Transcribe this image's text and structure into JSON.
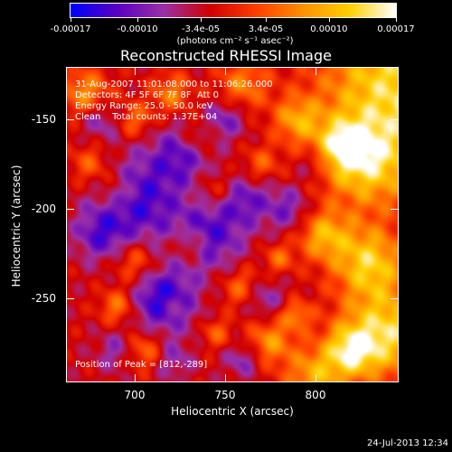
{
  "chart_data": {
    "type": "heatmap",
    "title": "Reconstructed RHESSI Image",
    "xlabel": "Heliocentric X (arcsec)",
    "ylabel": "Heliocentric Y (arcsec)",
    "xlim": [
      662,
      846
    ],
    "ylim": [
      -297,
      -121
    ],
    "x_ticks": [
      700,
      750,
      800
    ],
    "y_ticks": [
      -150,
      -200,
      -250
    ],
    "colorbar": {
      "ticks": [
        "-0.00017",
        "-0.00010",
        "-3.4e-05",
        "3.4e-05",
        "0.00010",
        "0.00017"
      ],
      "tick_values": [
        -0.00017,
        -0.0001,
        -3.4e-05,
        3.4e-05,
        0.0001,
        0.00017
      ],
      "range": [
        -0.00017,
        0.00017
      ],
      "unit_label": "(photons cm⁻² s⁻¹ asec⁻²)",
      "colors": [
        "#0000ff",
        "#5a00c0",
        "#9b30a8",
        "#d00000",
        "#ff4000",
        "#ff9000",
        "#ffd000",
        "#ffffff"
      ]
    },
    "annotations": [
      "31-Aug-2007 11:01:08.000 to 11:06:26.000",
      "Detectors: 4F 5F 6F 7F 8F  Att 0",
      "Energy Range: 25.0 - 50.0 keV",
      "Clean    Total counts: 1.37E+04"
    ],
    "peak_label": "Position of Peak = [812,-289]",
    "peak": [
      812,
      -289
    ],
    "grid": false
  },
  "timestamp": "24-Jul-2013 12:34"
}
